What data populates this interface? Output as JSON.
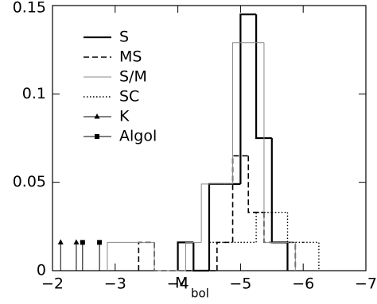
{
  "chart_data": {
    "type": "histogram",
    "xlabel": "M",
    "xlabel_sub": "bol",
    "xlim": [
      -2,
      -7
    ],
    "ylim": [
      0,
      0.15
    ],
    "xticks": [
      {
        "value": -2,
        "label": "−2"
      },
      {
        "value": -3,
        "label": "−3"
      },
      {
        "value": -4,
        "label": "−4"
      },
      {
        "value": -5,
        "label": "−5"
      },
      {
        "value": -6,
        "label": "−6"
      },
      {
        "value": -7,
        "label": "−7"
      }
    ],
    "yticks": [
      0,
      0.05,
      0.1,
      0.15
    ],
    "legend": "upper left",
    "series": [
      {
        "name": "S",
        "color": "#000000",
        "linestyle": "solid",
        "linewidth": 2.2,
        "bins": [
          -4,
          -4.25,
          -4.5,
          -4.75,
          -5,
          -5.25,
          -5.5,
          -5.75
        ],
        "values": [
          0.016,
          0,
          0.049,
          0.049,
          0.145,
          0.075,
          0.016
        ]
      },
      {
        "name": "MS",
        "color": "#000000",
        "linestyle": "dashed",
        "linewidth": 1.6,
        "bins": [
          -3.375,
          -3.625,
          -3.875,
          -4.125,
          -4.375,
          -4.625,
          -4.875,
          -5.125,
          -5.375,
          -5.625,
          -5.875
        ],
        "values": [
          0.016,
          0,
          0,
          0,
          0,
          0.016,
          0.065,
          0.033,
          0.016,
          0.016
        ]
      },
      {
        "name": "S/M",
        "color": "#888888",
        "linestyle": "solid",
        "linewidth": 1,
        "bins": [
          -2.875,
          -3.125,
          -3.375,
          -3.625,
          -3.875,
          -4.125,
          -4.375,
          -4.625,
          -4.875,
          -5.125,
          -5.375,
          -5.625,
          -5.875
        ],
        "values": [
          0.016,
          0.016,
          0.016,
          0,
          0,
          0.016,
          0.049,
          0.049,
          0.129,
          0.129,
          0.016,
          0.016
        ]
      },
      {
        "name": "SC",
        "color": "#000000",
        "linestyle": "dotted",
        "linewidth": 1.4,
        "bins": [
          -4.5,
          -4.75,
          -5,
          -5.25,
          -5.5,
          -5.75,
          -6,
          -6.25
        ],
        "values": [
          0.016,
          0.016,
          0.016,
          0.033,
          0.033,
          0.016,
          0.016
        ]
      },
      {
        "name": "K",
        "color": "#000000",
        "marker": "triangle",
        "x": [
          -2.13,
          -2.38
        ],
        "values": [
          0.016,
          0.016
        ]
      },
      {
        "name": "Algol",
        "color": "#000000",
        "marker": "square",
        "x": [
          -2.48,
          -2.75
        ],
        "values": [
          0.016,
          0.016
        ]
      }
    ]
  }
}
